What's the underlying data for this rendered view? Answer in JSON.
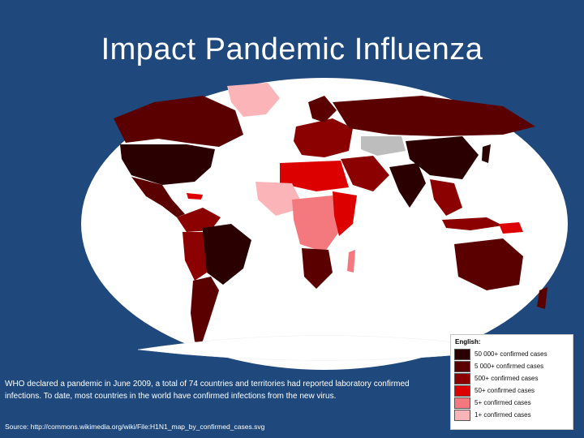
{
  "title": "Impact Pandemic Influenza",
  "description": "WHO declared a pandemic in June 2009, a total of 74 countries and territories had reported laboratory confirmed infections. To date, most countries in the world have confirmed infections from the new virus.",
  "source": "Source: http://commons.wikimedia.org/wiki/File:H1N1_map_by_confirmed_cases.svg",
  "legend": {
    "title": "English:",
    "items": [
      {
        "label": "50 000+ confirmed cases",
        "color": "#2b0000"
      },
      {
        "label": "5 000+ confirmed cases",
        "color": "#5a0000"
      },
      {
        "label": "500+ confirmed cases",
        "color": "#8b0000"
      },
      {
        "label": "50+ confirmed cases",
        "color": "#dd0000"
      },
      {
        "label": "5+ confirmed cases",
        "color": "#f4797f"
      },
      {
        "label": "1+ confirmed cases",
        "color": "#fbb5b8"
      }
    ]
  },
  "colors": {
    "background": "#1f497d",
    "map_background": "#ffffff",
    "no_data": "#bdbdbd"
  }
}
